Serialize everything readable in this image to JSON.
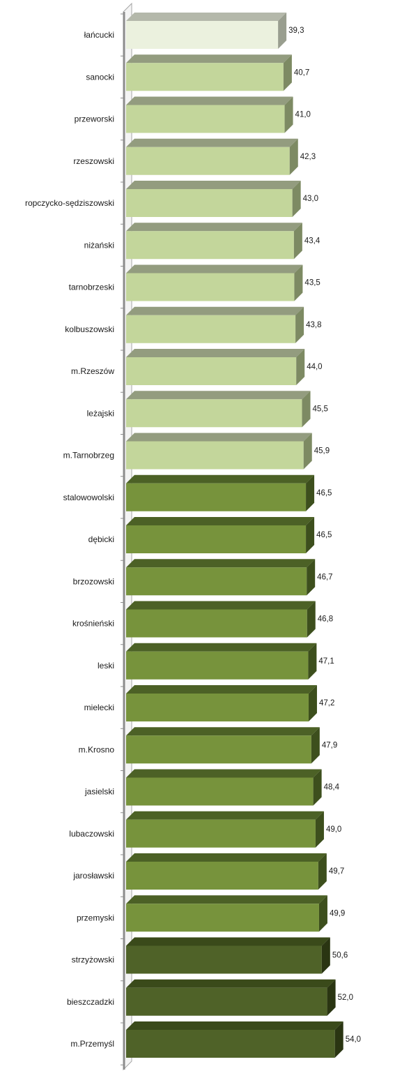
{
  "chart_data": {
    "type": "bar",
    "orientation": "horizontal",
    "title": "",
    "xlabel": "",
    "ylabel": "",
    "grid": false,
    "legend": "none",
    "categories": [
      "łańcucki",
      "sanocki",
      "przeworski",
      "rzeszowski",
      "ropczycko-sędziszowski",
      "niżański",
      "tarnobrzeski",
      "kolbuszowski",
      "m.Rzeszów",
      "leżajski",
      "m.Tarnobrzeg",
      "stalowowolski",
      "dębicki",
      "brzozowski",
      "krośnieński",
      "leski",
      "mielecki",
      "m.Krosno",
      "jasielski",
      "lubaczowski",
      "jarosławski",
      "przemyski",
      "strzyżowski",
      "bieszczadzki",
      "m.Przemyśl"
    ],
    "values": [
      39.3,
      40.7,
      41.0,
      42.3,
      43.0,
      43.4,
      43.5,
      43.8,
      44.0,
      45.5,
      45.9,
      46.5,
      46.5,
      46.7,
      46.8,
      47.1,
      47.2,
      47.9,
      48.4,
      49.0,
      49.7,
      49.9,
      50.6,
      52.0,
      54.0
    ],
    "value_labels": [
      "39,3",
      "40,7",
      "41,0",
      "42,3",
      "43,0",
      "43,4",
      "43,5",
      "43,8",
      "44,0",
      "45,5",
      "45,9",
      "46,5",
      "46,5",
      "46,7",
      "46,8",
      "47,1",
      "47,2",
      "47,9",
      "48,4",
      "49,0",
      "49,7",
      "49,9",
      "50,6",
      "52,0",
      "54,0"
    ],
    "color_group": [
      0,
      1,
      1,
      1,
      1,
      1,
      1,
      1,
      1,
      1,
      1,
      2,
      2,
      2,
      2,
      2,
      2,
      2,
      2,
      2,
      2,
      2,
      3,
      3,
      3
    ],
    "colors": {
      "group0": {
        "front": "#ebf1de",
        "top": "#b4b8aa",
        "side": "#999e8f"
      },
      "group1": {
        "front": "#c3d69b",
        "top": "#939c7f",
        "side": "#7d8a63"
      },
      "group2": {
        "front": "#77933c",
        "top": "#4c6126",
        "side": "#3d4f1d"
      },
      "group3": {
        "front": "#4f6228",
        "top": "#3a4a1a",
        "side": "#2a3512"
      },
      "axis": "#a6a6a6"
    }
  }
}
